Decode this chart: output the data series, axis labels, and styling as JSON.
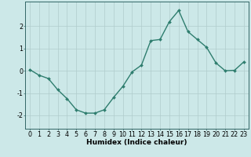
{
  "x": [
    0,
    1,
    2,
    3,
    4,
    5,
    6,
    7,
    8,
    9,
    10,
    11,
    12,
    13,
    14,
    15,
    16,
    17,
    18,
    19,
    20,
    21,
    22,
    23
  ],
  "y": [
    0.05,
    -0.2,
    -0.35,
    -0.85,
    -1.25,
    -1.75,
    -1.9,
    -1.9,
    -1.75,
    -1.2,
    -0.7,
    -0.05,
    0.25,
    1.35,
    1.4,
    2.2,
    2.7,
    1.75,
    1.4,
    1.05,
    0.35,
    0.0,
    0.02,
    0.4
  ],
  "line_color": "#2e7d6e",
  "marker": "D",
  "marker_size": 2.0,
  "line_width": 1.0,
  "bg_color": "#cce8e8",
  "grid_color": "#b0cccc",
  "xlabel": "Humidex (Indice chaleur)",
  "xlim": [
    -0.5,
    23.5
  ],
  "ylim": [
    -2.6,
    3.1
  ],
  "yticks": [
    -2,
    -1,
    0,
    1,
    2
  ],
  "xticks": [
    0,
    1,
    2,
    3,
    4,
    5,
    6,
    7,
    8,
    9,
    10,
    11,
    12,
    13,
    14,
    15,
    16,
    17,
    18,
    19,
    20,
    21,
    22,
    23
  ],
  "xlabel_fontsize": 6.5,
  "tick_fontsize": 5.8,
  "axis_color": "#336666"
}
